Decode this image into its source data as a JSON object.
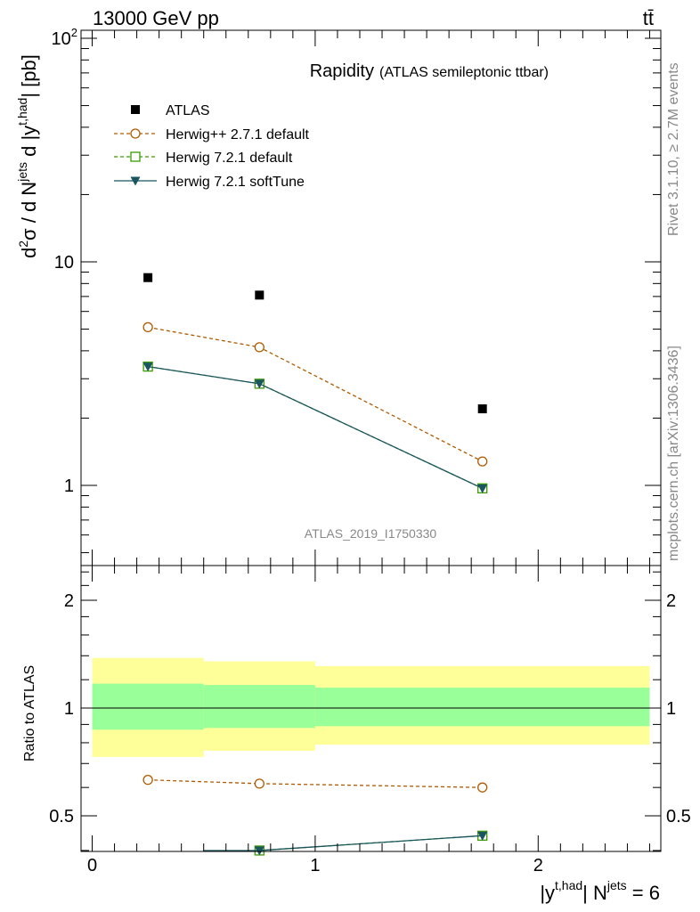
{
  "header": {
    "energy_label": "13000 GeV pp",
    "process_label": "tt̄"
  },
  "side_labels": {
    "rivet": "Rivet 3.1.10, ≥ 2.7M events",
    "mcplots": "mcplots.cern.ch [arXiv:1306.3436]"
  },
  "colors": {
    "herwigpp": "#b05a00",
    "herwig721": "#3a9a00",
    "softtune": "#1a5560",
    "band_yellow": "#ffff99",
    "band_green": "#99ff99"
  },
  "chart_data": [
    {
      "type": "scatter",
      "panel": "main",
      "title": "Rapidity",
      "subtitle": "(ATLAS semileptonic ttbar)",
      "watermark": "ATLAS_2019_I1750330",
      "ylabel_parts": {
        "a": "d",
        "b": "2",
        "c": "σ / d N",
        "d": "jets",
        "e": " d |y",
        "f": "t,had",
        "g": "| [pb]"
      },
      "yscale": "log",
      "ylim": [
        0.45,
        110
      ],
      "xlim": [
        -0.05,
        2.55
      ],
      "y_ticks": [
        {
          "value": 1,
          "label": "1"
        },
        {
          "value": 10,
          "label": "10"
        },
        {
          "value": 100,
          "label": "10",
          "sup": "2"
        }
      ],
      "legend_position": "top-left",
      "series": [
        {
          "name": "ATLAS",
          "marker": "filled-square",
          "x": [
            0.25,
            0.75,
            1.75
          ],
          "y": [
            8.5,
            7.1,
            2.2
          ]
        },
        {
          "name": "Herwig++ 2.7.1 default",
          "marker": "open-circle",
          "line": "dashed",
          "x": [
            0.25,
            0.75,
            1.75
          ],
          "y": [
            5.1,
            4.15,
            1.28
          ]
        },
        {
          "name": "Herwig 7.2.1 default",
          "marker": "open-square",
          "line": "dashed",
          "x": [
            0.25,
            0.75,
            1.75
          ],
          "y": [
            3.4,
            2.85,
            0.97
          ]
        },
        {
          "name": "Herwig 7.2.1 softTune",
          "marker": "filled-triangle-down",
          "line": "solid",
          "x": [
            0.25,
            0.75,
            1.75
          ],
          "y": [
            3.4,
            2.85,
            0.97
          ]
        }
      ]
    },
    {
      "type": "scatter",
      "panel": "ratio",
      "ylabel": "Ratio to ATLAS",
      "yscale": "log",
      "ylim": [
        0.4,
        2.5
      ],
      "xlim": [
        -0.05,
        2.55
      ],
      "xlabel_parts": {
        "a": "|y",
        "b": "t,had",
        "c": "| N",
        "d": "jets",
        "e": " = 6"
      },
      "x_ticks": [
        {
          "value": 0,
          "label": "0"
        },
        {
          "value": 1,
          "label": "1"
        },
        {
          "value": 2,
          "label": "2"
        }
      ],
      "y_ticks": [
        {
          "value": 0.5,
          "label": "0.5"
        },
        {
          "value": 1,
          "label": "1"
        },
        {
          "value": 2,
          "label": "2"
        }
      ],
      "bands": [
        {
          "x0": 0,
          "x1": 0.5,
          "yellow": [
            0.73,
            1.38
          ],
          "green": [
            0.87,
            1.17
          ]
        },
        {
          "x0": 0.5,
          "x1": 1.0,
          "yellow": [
            0.76,
            1.35
          ],
          "green": [
            0.88,
            1.16
          ]
        },
        {
          "x0": 1.0,
          "x1": 2.5,
          "yellow": [
            0.79,
            1.31
          ],
          "green": [
            0.89,
            1.14
          ]
        }
      ],
      "series": [
        {
          "name": "Herwig++ 2.7.1 default",
          "x": [
            0.25,
            0.75,
            1.75
          ],
          "y": [
            0.63,
            0.615,
            0.6
          ]
        },
        {
          "name": "Herwig 7.2.1 default",
          "x": [
            0.75,
            1.75
          ],
          "y": [
            0.4,
            0.44
          ]
        },
        {
          "name": "Herwig 7.2.1 softTune",
          "x": [
            0.75,
            1.75
          ],
          "y": [
            0.4,
            0.44
          ]
        }
      ]
    }
  ]
}
